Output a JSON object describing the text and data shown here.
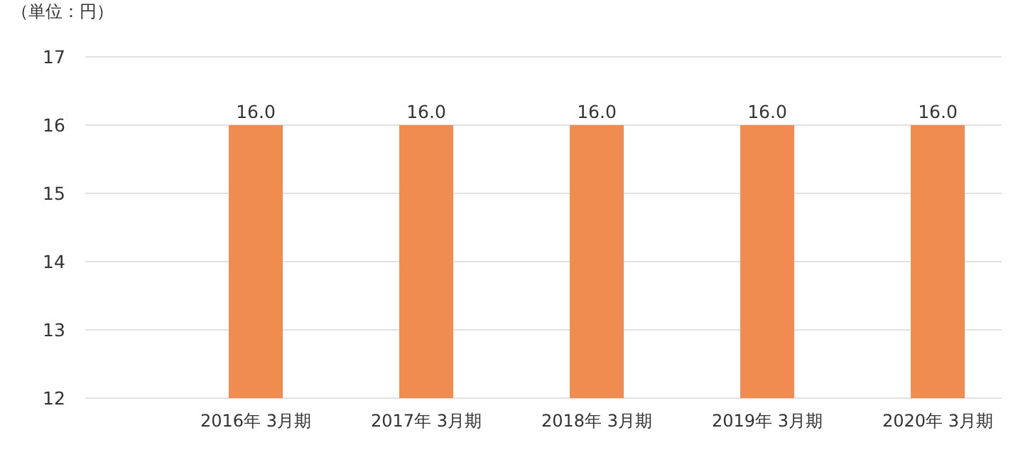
{
  "chart_data": {
    "type": "bar",
    "ylabel": "（単位：円）",
    "categories": [
      "2016年 3月期",
      "2017年 3月期",
      "2018年 3月期",
      "2019年 3月期",
      "2020年 3月期"
    ],
    "values": [
      16.0,
      16.0,
      16.0,
      16.0,
      16.0
    ],
    "value_labels": [
      "16.0",
      "16.0",
      "16.0",
      "16.0",
      "16.0"
    ],
    "color": "#f08c4f",
    "ylim": [
      12,
      17
    ],
    "yticks": [
      12,
      13,
      14,
      15,
      16,
      17
    ],
    "grid": "y"
  }
}
